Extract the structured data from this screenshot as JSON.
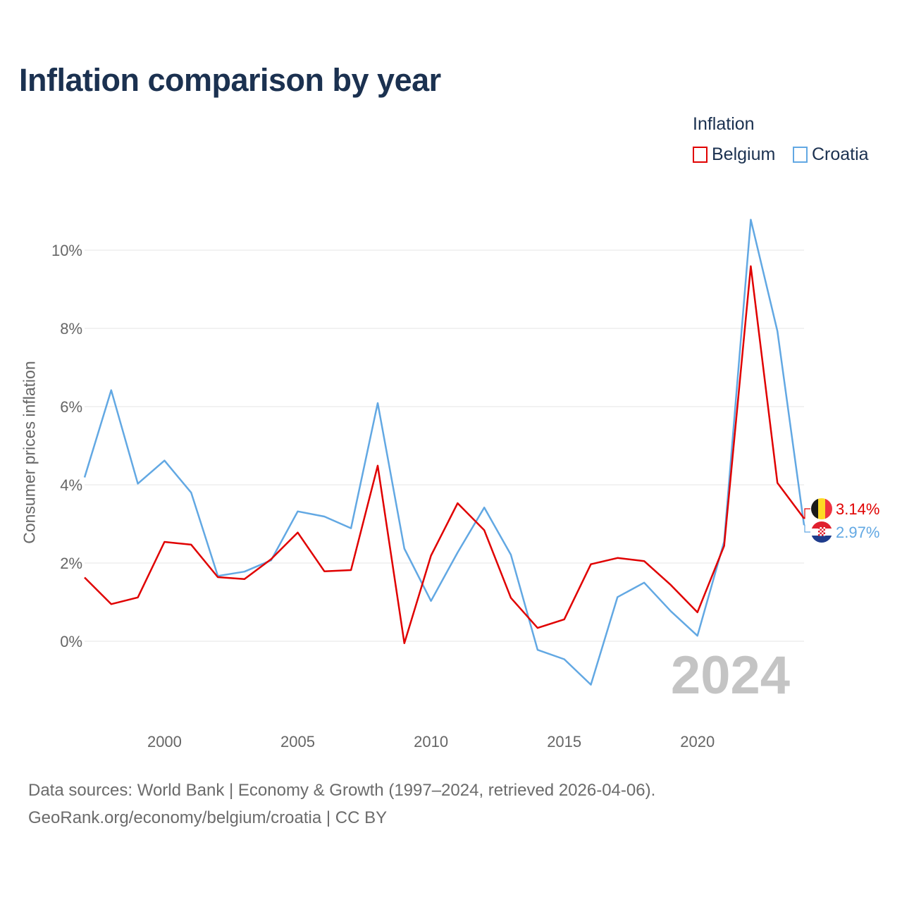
{
  "chart_data": {
    "type": "line",
    "title": "Inflation comparison by year",
    "legend_title": "Inflation",
    "legend_position": "top-right",
    "ylabel": "Consumer prices inflation",
    "xlabel": "",
    "x": [
      1997,
      1998,
      1999,
      2000,
      2001,
      2002,
      2003,
      2004,
      2005,
      2006,
      2007,
      2008,
      2009,
      2010,
      2011,
      2012,
      2013,
      2014,
      2015,
      2016,
      2017,
      2018,
      2019,
      2020,
      2021,
      2022,
      2023,
      2024
    ],
    "xlim": [
      1997,
      2024
    ],
    "ylim": [
      -2,
      11
    ],
    "x_ticks": [
      2000,
      2005,
      2010,
      2015,
      2020
    ],
    "x_tick_labels": [
      "2000",
      "2005",
      "2010",
      "2015",
      "2020"
    ],
    "y_ticks": [
      0,
      2,
      4,
      6,
      8,
      10
    ],
    "y_tick_labels": [
      "0%",
      "2%",
      "4%",
      "6%",
      "8%",
      "10%"
    ],
    "grid": true,
    "year_watermark": "2024",
    "series": [
      {
        "name": "Belgium",
        "color": "#e00000",
        "flag": "belgium-flag-icon",
        "values": [
          1.63,
          0.95,
          1.12,
          2.54,
          2.47,
          1.64,
          1.59,
          2.1,
          2.78,
          1.79,
          1.82,
          4.49,
          -0.05,
          2.19,
          3.53,
          2.84,
          1.11,
          0.34,
          0.56,
          1.97,
          2.13,
          2.05,
          1.44,
          0.74,
          2.44,
          9.59,
          4.05,
          3.14
        ],
        "end_label": "3.14%"
      },
      {
        "name": "Croatia",
        "color": "#62a8e3",
        "flag": "croatia-flag-icon",
        "values": [
          4.19,
          6.42,
          4.03,
          4.62,
          3.8,
          1.67,
          1.78,
          2.07,
          3.32,
          3.19,
          2.89,
          6.09,
          2.37,
          1.03,
          2.27,
          3.42,
          2.21,
          -0.22,
          -0.46,
          -1.11,
          1.13,
          1.5,
          0.77,
          0.14,
          2.55,
          10.78,
          7.93,
          2.97
        ],
        "end_label": "2.97%"
      }
    ]
  },
  "footer": {
    "source_line": "Data sources: World Bank | Economy & Growth (1997–2024, retrieved 2026-04-06).",
    "url_line": "GeoRank.org/economy/belgium/croatia | CC BY"
  }
}
